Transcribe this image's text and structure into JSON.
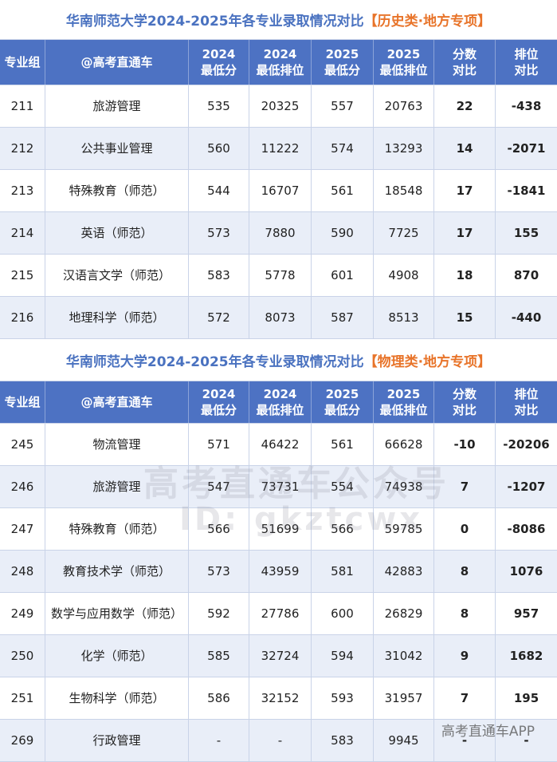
{
  "tables": [
    {
      "title": "华南师范大学2024-2025年各专业录取情况对比",
      "tag": "【历史类·地方专项】",
      "header": [
        [
          "专业组"
        ],
        [
          "@高考直通车"
        ],
        [
          "2024",
          "最低分"
        ],
        [
          "2024",
          "最低排位"
        ],
        [
          "2025",
          "最低分"
        ],
        [
          "2025",
          "最低排位"
        ],
        [
          "分数",
          "对比"
        ],
        [
          "排位",
          "对比"
        ]
      ],
      "rows": [
        [
          "211",
          "旅游管理",
          "535",
          "20325",
          "557",
          "20763",
          "22",
          "-438"
        ],
        [
          "212",
          "公共事业管理",
          "560",
          "11222",
          "574",
          "13293",
          "14",
          "-2071"
        ],
        [
          "213",
          "特殊教育（师范）",
          "544",
          "16707",
          "561",
          "18548",
          "17",
          "-1841"
        ],
        [
          "214",
          "英语（师范）",
          "573",
          "7880",
          "590",
          "7725",
          "17",
          "155"
        ],
        [
          "215",
          "汉语言文学（师范）",
          "583",
          "5778",
          "601",
          "4908",
          "18",
          "870"
        ],
        [
          "216",
          "地理科学（师范）",
          "572",
          "8073",
          "587",
          "8513",
          "15",
          "-440"
        ]
      ]
    },
    {
      "title": "华南师范大学2024-2025年各专业录取情况对比",
      "tag": "【物理类·地方专项】",
      "header": [
        [
          "专业组"
        ],
        [
          "@高考直通车"
        ],
        [
          "2024",
          "最低分"
        ],
        [
          "2024",
          "最低排位"
        ],
        [
          "2025",
          "最低分"
        ],
        [
          "2025",
          "最低排位"
        ],
        [
          "分数",
          "对比"
        ],
        [
          "排位",
          "对比"
        ]
      ],
      "rows": [
        [
          "245",
          "物流管理",
          "571",
          "46422",
          "561",
          "66628",
          "-10",
          "-20206"
        ],
        [
          "246",
          "旅游管理",
          "547",
          "73731",
          "554",
          "74938",
          "7",
          "-1207"
        ],
        [
          "247",
          "特殊教育（师范）",
          "566",
          "51699",
          "566",
          "59785",
          "0",
          "-8086"
        ],
        [
          "248",
          "教育技术学（师范）",
          "573",
          "43959",
          "581",
          "42883",
          "8",
          "1076"
        ],
        [
          "249",
          "数学与应用数学（师范）",
          "592",
          "27786",
          "600",
          "26829",
          "8",
          "957"
        ],
        [
          "250",
          "化学（师范）",
          "585",
          "32724",
          "594",
          "31042",
          "9",
          "1682"
        ],
        [
          "251",
          "生物科学（师范）",
          "586",
          "32152",
          "593",
          "31957",
          "7",
          "195"
        ],
        [
          "269",
          "行政管理",
          "-",
          "-",
          "583",
          "9945",
          "-",
          "-"
        ]
      ]
    }
  ],
  "watermarks": [
    "高考直通车公众号",
    "ID: gkztcwx",
    "高考直通车APP"
  ]
}
